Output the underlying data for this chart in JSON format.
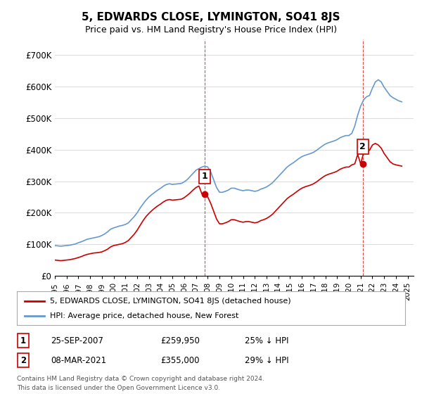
{
  "title": "5, EDWARDS CLOSE, LYMINGTON, SO41 8JS",
  "subtitle": "Price paid vs. HM Land Registry's House Price Index (HPI)",
  "legend_label_red": "5, EDWARDS CLOSE, LYMINGTON, SO41 8JS (detached house)",
  "legend_label_blue": "HPI: Average price, detached house, New Forest",
  "footer_line1": "Contains HM Land Registry data © Crown copyright and database right 2024.",
  "footer_line2": "This data is licensed under the Open Government Licence v3.0.",
  "annotation1_label": "1",
  "annotation1_date": "25-SEP-2007",
  "annotation1_price": "£259,950",
  "annotation1_hpi": "25% ↓ HPI",
  "annotation2_label": "2",
  "annotation2_date": "08-MAR-2021",
  "annotation2_price": "£355,000",
  "annotation2_hpi": "29% ↓ HPI",
  "red_color": "#cc0000",
  "blue_color": "#6699cc",
  "dashed_color": "#cc0000",
  "background_color": "#ffffff",
  "grid_color": "#dddddd",
  "ylim": [
    0,
    750000
  ],
  "yticks": [
    0,
    100000,
    200000,
    300000,
    400000,
    500000,
    600000,
    700000
  ],
  "ytick_labels": [
    "£0",
    "£100K",
    "£200K",
    "£300K",
    "£400K",
    "£500K",
    "£600K",
    "£700K"
  ],
  "xlim_start": 1995.0,
  "xlim_end": 2025.5,
  "sale1_x": 2007.73,
  "sale1_y": 259950,
  "sale2_x": 2021.18,
  "sale2_y": 355000,
  "hpi_x": [
    1995.0,
    1995.25,
    1995.5,
    1995.75,
    1996.0,
    1996.25,
    1996.5,
    1996.75,
    1997.0,
    1997.25,
    1997.5,
    1997.75,
    1998.0,
    1998.25,
    1998.5,
    1998.75,
    1999.0,
    1999.25,
    1999.5,
    1999.75,
    2000.0,
    2000.25,
    2000.5,
    2000.75,
    2001.0,
    2001.25,
    2001.5,
    2001.75,
    2002.0,
    2002.25,
    2002.5,
    2002.75,
    2003.0,
    2003.25,
    2003.5,
    2003.75,
    2004.0,
    2004.25,
    2004.5,
    2004.75,
    2005.0,
    2005.25,
    2005.5,
    2005.75,
    2006.0,
    2006.25,
    2006.5,
    2006.75,
    2007.0,
    2007.25,
    2007.5,
    2007.75,
    2008.0,
    2008.25,
    2008.5,
    2008.75,
    2009.0,
    2009.25,
    2009.5,
    2009.75,
    2010.0,
    2010.25,
    2010.5,
    2010.75,
    2011.0,
    2011.25,
    2011.5,
    2011.75,
    2012.0,
    2012.25,
    2012.5,
    2012.75,
    2013.0,
    2013.25,
    2013.5,
    2013.75,
    2014.0,
    2014.25,
    2014.5,
    2014.75,
    2015.0,
    2015.25,
    2015.5,
    2015.75,
    2016.0,
    2016.25,
    2016.5,
    2016.75,
    2017.0,
    2017.25,
    2017.5,
    2017.75,
    2018.0,
    2018.25,
    2018.5,
    2018.75,
    2019.0,
    2019.25,
    2019.5,
    2019.75,
    2020.0,
    2020.25,
    2020.5,
    2020.75,
    2021.0,
    2021.25,
    2021.5,
    2021.75,
    2022.0,
    2022.25,
    2022.5,
    2022.75,
    2023.0,
    2023.25,
    2023.5,
    2023.75,
    2024.0,
    2024.25,
    2024.5
  ],
  "hpi_y": [
    96000,
    95000,
    94000,
    95000,
    96000,
    97000,
    99000,
    101000,
    105000,
    108000,
    112000,
    116000,
    118000,
    120000,
    122000,
    124000,
    128000,
    133000,
    140000,
    148000,
    152000,
    155000,
    158000,
    160000,
    163000,
    168000,
    178000,
    188000,
    200000,
    215000,
    228000,
    240000,
    250000,
    258000,
    265000,
    272000,
    278000,
    285000,
    290000,
    292000,
    290000,
    291000,
    292000,
    293000,
    298000,
    305000,
    315000,
    325000,
    335000,
    340000,
    345000,
    348000,
    345000,
    330000,
    305000,
    280000,
    265000,
    265000,
    268000,
    272000,
    278000,
    278000,
    275000,
    272000,
    270000,
    272000,
    272000,
    270000,
    268000,
    270000,
    275000,
    278000,
    282000,
    288000,
    295000,
    305000,
    315000,
    325000,
    335000,
    345000,
    352000,
    358000,
    365000,
    372000,
    378000,
    382000,
    385000,
    388000,
    392000,
    398000,
    405000,
    412000,
    418000,
    422000,
    425000,
    428000,
    432000,
    438000,
    442000,
    445000,
    445000,
    452000,
    475000,
    510000,
    538000,
    558000,
    568000,
    572000,
    595000,
    615000,
    622000,
    615000,
    598000,
    585000,
    572000,
    565000,
    560000,
    555000,
    552000
  ],
  "red_x": [
    1995.0,
    1995.25,
    1995.5,
    1995.75,
    1996.0,
    1996.25,
    1996.5,
    1996.75,
    1997.0,
    1997.25,
    1997.5,
    1997.75,
    1998.0,
    1998.25,
    1998.5,
    1998.75,
    1999.0,
    1999.25,
    1999.5,
    1999.75,
    2000.0,
    2000.25,
    2000.5,
    2000.75,
    2001.0,
    2001.25,
    2001.5,
    2001.75,
    2002.0,
    2002.25,
    2002.5,
    2002.75,
    2003.0,
    2003.25,
    2003.5,
    2003.75,
    2004.0,
    2004.25,
    2004.5,
    2004.75,
    2005.0,
    2005.25,
    2005.5,
    2005.75,
    2006.0,
    2006.25,
    2006.5,
    2006.75,
    2007.0,
    2007.25,
    2007.5,
    2007.75,
    2008.0,
    2008.25,
    2008.5,
    2008.75,
    2009.0,
    2009.25,
    2009.5,
    2009.75,
    2010.0,
    2010.25,
    2010.5,
    2010.75,
    2011.0,
    2011.25,
    2011.5,
    2011.75,
    2012.0,
    2012.25,
    2012.5,
    2012.75,
    2013.0,
    2013.25,
    2013.5,
    2013.75,
    2014.0,
    2014.25,
    2014.5,
    2014.75,
    2015.0,
    2015.25,
    2015.5,
    2015.75,
    2016.0,
    2016.25,
    2016.5,
    2016.75,
    2017.0,
    2017.25,
    2017.5,
    2017.75,
    2018.0,
    2018.25,
    2018.5,
    2018.75,
    2019.0,
    2019.25,
    2019.5,
    2019.75,
    2020.0,
    2020.25,
    2020.5,
    2020.75,
    2021.0,
    2021.25,
    2021.5,
    2021.75,
    2022.0,
    2022.25,
    2022.5,
    2022.75,
    2023.0,
    2023.25,
    2023.5,
    2023.75,
    2024.0,
    2024.25,
    2024.5
  ],
  "red_y": [
    50000,
    49000,
    48000,
    49000,
    50000,
    51000,
    53000,
    55000,
    58000,
    61000,
    65000,
    68000,
    70000,
    72000,
    73000,
    74000,
    76000,
    80000,
    85000,
    92000,
    96000,
    98000,
    100000,
    102000,
    106000,
    112000,
    122000,
    132000,
    145000,
    160000,
    175000,
    188000,
    198000,
    207000,
    215000,
    222000,
    228000,
    235000,
    240000,
    242000,
    240000,
    241000,
    242000,
    243000,
    248000,
    255000,
    263000,
    272000,
    280000,
    285000,
    260000,
    259950,
    250000,
    230000,
    205000,
    180000,
    165000,
    165000,
    168000,
    172000,
    178000,
    178000,
    175000,
    172000,
    170000,
    172000,
    172000,
    170000,
    168000,
    170000,
    175000,
    178000,
    182000,
    188000,
    195000,
    205000,
    215000,
    225000,
    235000,
    245000,
    252000,
    258000,
    265000,
    272000,
    278000,
    282000,
    285000,
    288000,
    292000,
    298000,
    305000,
    312000,
    318000,
    322000,
    325000,
    328000,
    332000,
    338000,
    342000,
    345000,
    345000,
    352000,
    355000,
    385000,
    355000,
    390000,
    395000,
    398000,
    415000,
    420000,
    415000,
    405000,
    388000,
    375000,
    362000,
    355000,
    352000,
    350000,
    348000
  ]
}
